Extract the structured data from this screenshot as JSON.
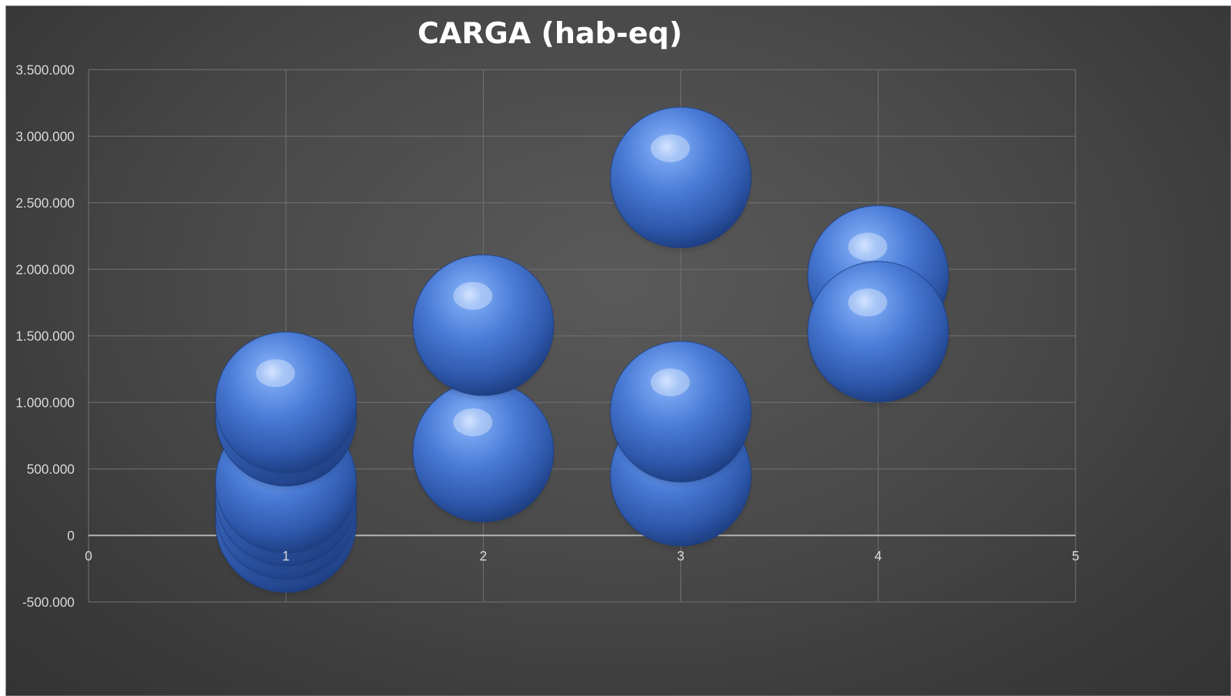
{
  "chart_data": {
    "type": "bubble",
    "title": "CARGA (hab-eq)",
    "xlabel": "",
    "ylabel": "",
    "xlim": [
      0,
      5
    ],
    "ylim": [
      -500000,
      3500000
    ],
    "x_ticks": [
      0,
      1,
      2,
      3,
      4,
      5
    ],
    "y_ticks": [
      -500000,
      0,
      500000,
      1000000,
      1500000,
      2000000,
      2500000,
      3000000,
      3500000
    ],
    "x_tick_labels": [
      "0",
      "1",
      "2",
      "3",
      "4",
      "5"
    ],
    "y_tick_labels": [
      "-500.000",
      "0",
      "500.000",
      "1.000.000",
      "1.500.000",
      "2.000.000",
      "2.500.000",
      "3.000.000",
      "3.500.000"
    ],
    "grid": true,
    "legend": "none",
    "bubble_style": "3d",
    "bubble_color": "#4a7bd6",
    "series": [
      {
        "points": [
          {
            "x": 1,
            "y": 100000
          },
          {
            "x": 1,
            "y": 200000
          },
          {
            "x": 1,
            "y": 300000
          },
          {
            "x": 1,
            "y": 400000
          },
          {
            "x": 1,
            "y": 900000
          },
          {
            "x": 1,
            "y": 1000000
          },
          {
            "x": 2,
            "y": 630000
          },
          {
            "x": 2,
            "y": 1580000
          },
          {
            "x": 3,
            "y": 450000
          },
          {
            "x": 3,
            "y": 930000
          },
          {
            "x": 3,
            "y": 2690000
          },
          {
            "x": 4,
            "y": 1950000
          },
          {
            "x": 4,
            "y": 1530000
          }
        ]
      }
    ]
  }
}
